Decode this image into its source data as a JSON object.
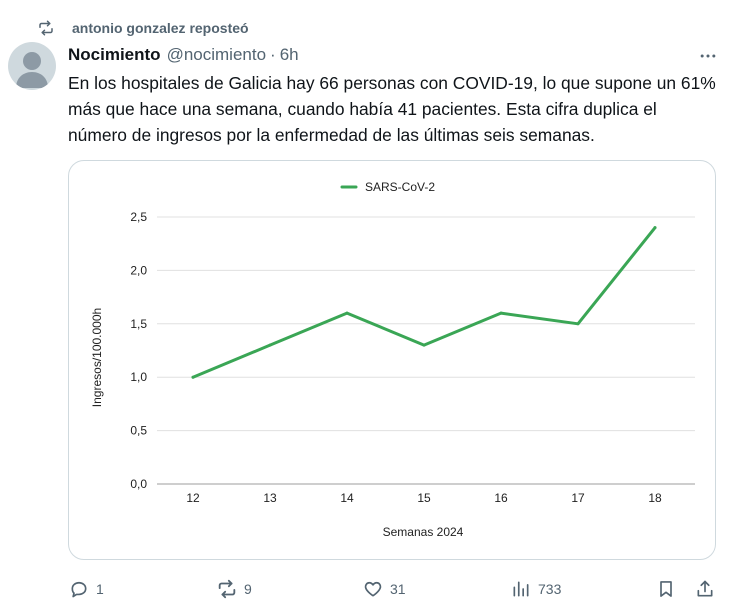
{
  "repost": {
    "text": "antonio gonzalez reposteó",
    "icon": "repost-icon"
  },
  "author": {
    "name": "Nocimiento",
    "handle": "@nocimiento",
    "separator": "·",
    "time": "6h"
  },
  "tweet": {
    "text": "En los hospitales de Galicia hay 66 personas con COVID-19, lo que supone un 61% más que hace una semana, cuando había 41 pacientes. Esta cifra duplica el número de ingresos por la enfermedad de las últimas seis semanas."
  },
  "chart_data": {
    "type": "line",
    "x": [
      12,
      13,
      14,
      15,
      16,
      17,
      18
    ],
    "x_tick_labels": [
      "12",
      "13",
      "14",
      "15",
      "16",
      "17",
      "18"
    ],
    "series": [
      {
        "name": "SARS-CoV-2",
        "values": [
          1.0,
          1.3,
          1.6,
          1.3,
          1.6,
          1.5,
          2.4
        ],
        "color": "#3aa655"
      }
    ],
    "y_ticks": [
      0,
      0.5,
      1.0,
      1.5,
      2.0,
      2.5
    ],
    "y_tick_labels": [
      "0,0",
      "0,5",
      "1,0",
      "1,5",
      "2,0",
      "2,5"
    ],
    "ylim": [
      0,
      2.5
    ],
    "xlabel": "Semanas 2024",
    "ylabel": "Ingresos/100.000h",
    "grid": true,
    "legend_position": "top-center"
  },
  "actions": {
    "reply_count": "1",
    "repost_count": "9",
    "like_count": "31",
    "views_count": "733"
  },
  "colors": {
    "text": "#0f1419",
    "secondary": "#536471",
    "border": "#cfd9de",
    "line": "#3aa655",
    "grid": "#e0e0e0"
  }
}
